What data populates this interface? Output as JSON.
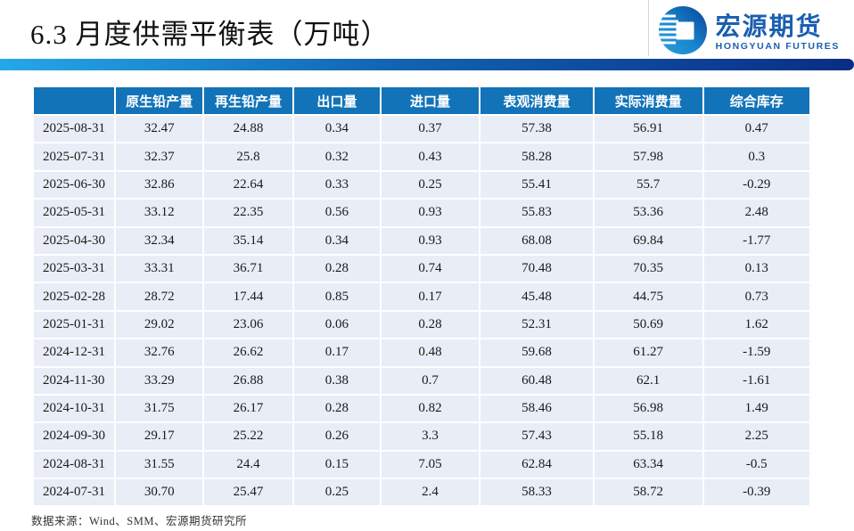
{
  "slide": {
    "title": "6.3 月度供需平衡表（万吨）",
    "source_note": "数据来源：Wind、SMM、宏源期货研究所"
  },
  "logo": {
    "name_cn": "宏源期货",
    "name_en": "HONGYUAN FUTURES"
  },
  "colors": {
    "table_header_bg": "#1273B8",
    "table_row_bg": "#E9EDF6",
    "accent_bar_left": "#25A7E8",
    "accent_bar_right": "#0A2D85",
    "logo_blue": "#1B5FB0"
  },
  "table": {
    "headers": [
      "",
      "原生铅产量",
      "再生铅产量",
      "出口量",
      "进口量",
      "表观消费量",
      "实际消费量",
      "综合库存"
    ],
    "rows": [
      {
        "date": "2025-08-31",
        "values": [
          "32.47",
          "24.88",
          "0.34",
          "0.37",
          "57.38",
          "56.91",
          "0.47"
        ]
      },
      {
        "date": "2025-07-31",
        "values": [
          "32.37",
          "25.8",
          "0.32",
          "0.43",
          "58.28",
          "57.98",
          "0.3"
        ]
      },
      {
        "date": "2025-06-30",
        "values": [
          "32.86",
          "22.64",
          "0.33",
          "0.25",
          "55.41",
          "55.7",
          "-0.29"
        ]
      },
      {
        "date": "2025-05-31",
        "values": [
          "33.12",
          "22.35",
          "0.56",
          "0.93",
          "55.83",
          "53.36",
          "2.48"
        ]
      },
      {
        "date": "2025-04-30",
        "values": [
          "32.34",
          "35.14",
          "0.34",
          "0.93",
          "68.08",
          "69.84",
          "-1.77"
        ]
      },
      {
        "date": "2025-03-31",
        "values": [
          "33.31",
          "36.71",
          "0.28",
          "0.74",
          "70.48",
          "70.35",
          "0.13"
        ]
      },
      {
        "date": "2025-02-28",
        "values": [
          "28.72",
          "17.44",
          "0.85",
          "0.17",
          "45.48",
          "44.75",
          "0.73"
        ]
      },
      {
        "date": "2025-01-31",
        "values": [
          "29.02",
          "23.06",
          "0.06",
          "0.28",
          "52.31",
          "50.69",
          "1.62"
        ]
      },
      {
        "date": "2024-12-31",
        "values": [
          "32.76",
          "26.62",
          "0.17",
          "0.48",
          "59.68",
          "61.27",
          "-1.59"
        ]
      },
      {
        "date": "2024-11-30",
        "values": [
          "33.29",
          "26.88",
          "0.38",
          "0.7",
          "60.48",
          "62.1",
          "-1.61"
        ]
      },
      {
        "date": "2024-10-31",
        "values": [
          "31.75",
          "26.17",
          "0.28",
          "0.82",
          "58.46",
          "56.98",
          "1.49"
        ]
      },
      {
        "date": "2024-09-30",
        "values": [
          "29.17",
          "25.22",
          "0.26",
          "3.3",
          "57.43",
          "55.18",
          "2.25"
        ]
      },
      {
        "date": "2024-08-31",
        "values": [
          "31.55",
          "24.4",
          "0.15",
          "7.05",
          "62.84",
          "63.34",
          "-0.5"
        ]
      },
      {
        "date": "2024-07-31",
        "values": [
          "30.70",
          "25.47",
          "0.25",
          "2.4",
          "58.33",
          "58.72",
          "-0.39"
        ]
      }
    ]
  }
}
